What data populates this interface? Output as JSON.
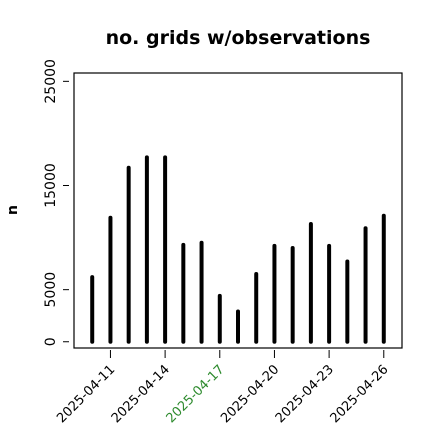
{
  "chart_data": {
    "type": "bar",
    "title": "no. grids w/observations",
    "xlabel": "",
    "ylabel": "n",
    "ylim": [
      -600,
      25800
    ],
    "yticks": [
      0,
      5000,
      15000,
      25000
    ],
    "xlim": [
      "2025-04-09",
      "2025-04-27"
    ],
    "xticks": [
      "2025-04-11",
      "2025-04-14",
      "2025-04-17",
      "2025-04-20",
      "2025-04-23",
      "2025-04-26"
    ],
    "highlight_tick": "2025-04-17",
    "highlight_color": "#2e8b2e",
    "bar_color": "#000000",
    "grid": false,
    "x": [
      "2025-04-10",
      "2025-04-11",
      "2025-04-12",
      "2025-04-13",
      "2025-04-14",
      "2025-04-15",
      "2025-04-16",
      "2025-04-17",
      "2025-04-18",
      "2025-04-19",
      "2025-04-20",
      "2025-04-21",
      "2025-04-22",
      "2025-04-23",
      "2025-04-24",
      "2025-04-25",
      "2025-04-26"
    ],
    "values": [
      6200,
      11900,
      16700,
      17700,
      17700,
      9300,
      9500,
      4400,
      2900,
      6500,
      9200,
      9000,
      11300,
      9200,
      7700,
      10900,
      12100
    ]
  }
}
